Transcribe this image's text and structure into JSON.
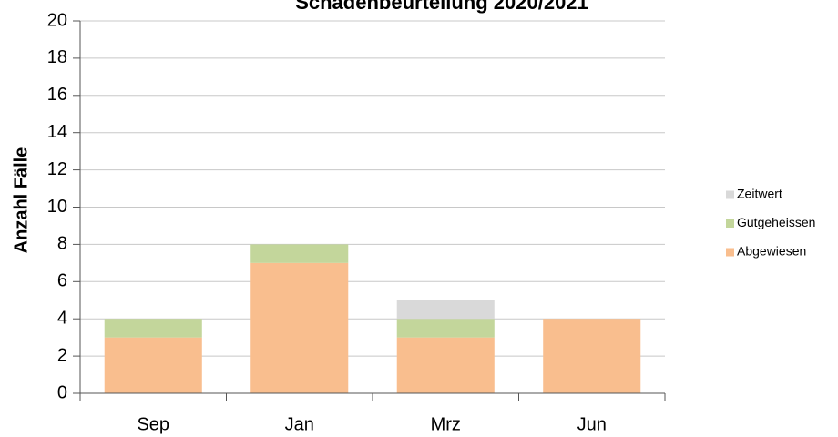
{
  "chart_data": {
    "type": "stacked_bar",
    "title": "Schadenbeurteilung 2020/2021",
    "y_label": "Anzahl Fälle",
    "categories": [
      "Sep",
      "Jan",
      "Mrz",
      "Jun"
    ],
    "series": [
      {
        "name": "Abgewiesen",
        "color": "#f9be8e",
        "values": [
          3,
          7,
          3,
          4
        ]
      },
      {
        "name": "Gutgeheissen",
        "color": "#c3d69b",
        "values": [
          1,
          1,
          1,
          0
        ]
      },
      {
        "name": "Zeitwert",
        "color": "#d9d9d9",
        "values": [
          0,
          0,
          1,
          0
        ]
      }
    ],
    "ylim": [
      0,
      20
    ],
    "yticks": [
      0,
      2,
      4,
      6,
      8,
      10,
      12,
      14,
      16,
      18,
      20
    ],
    "grid": true,
    "legend": "right"
  }
}
